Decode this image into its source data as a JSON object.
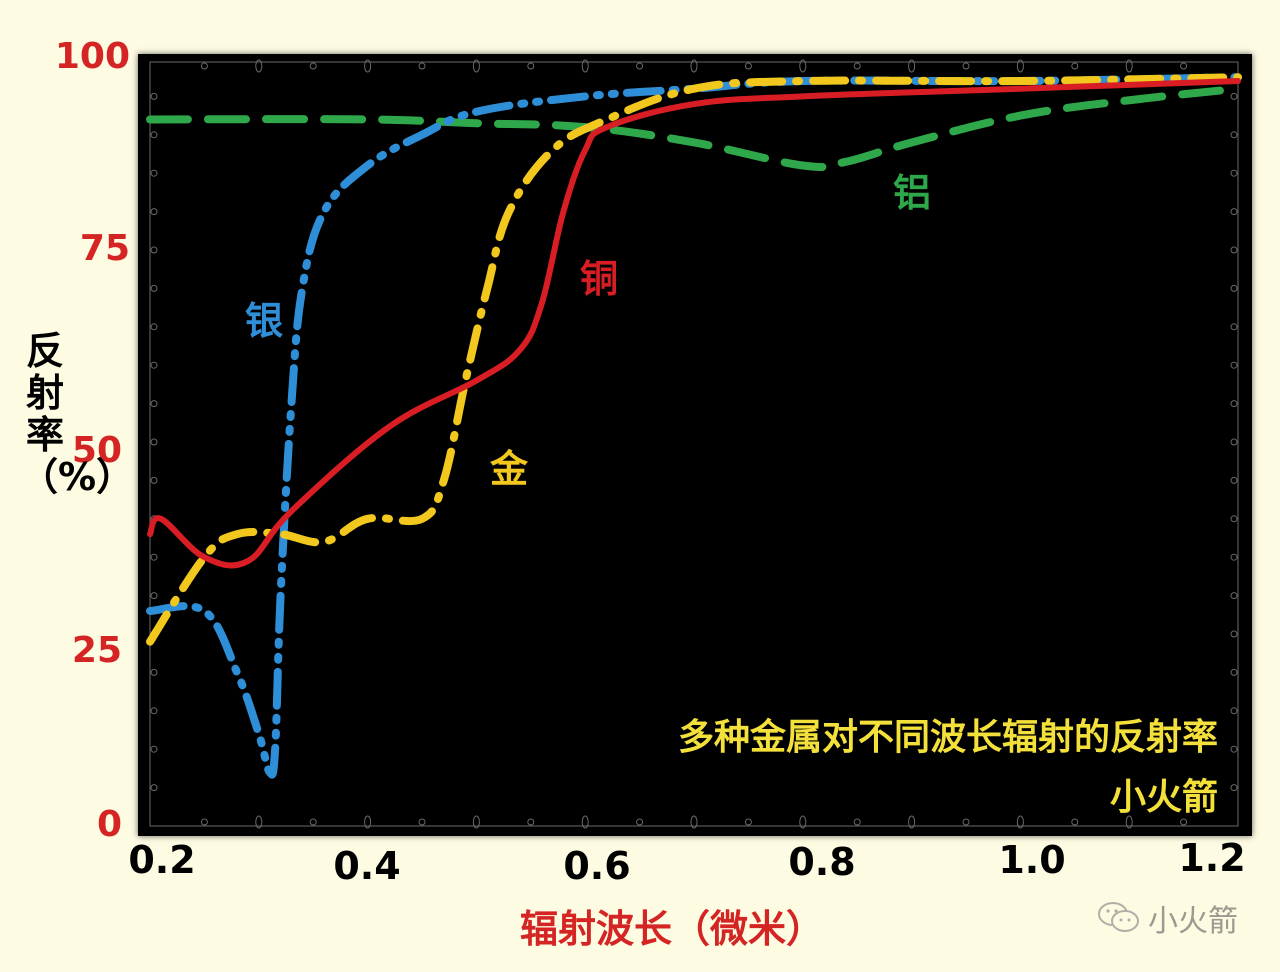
{
  "chart_data": {
    "type": "line",
    "title": "多种金属对不同波长辐射的反射率",
    "subtitle": "小火箭",
    "xlabel": "辐射波长（微米）",
    "ylabel": "反射率（%）",
    "xlim": [
      0.2,
      1.2
    ],
    "ylim": [
      0,
      100
    ],
    "x_ticks": [
      "0.2",
      "0.4",
      "0.6",
      "0.8",
      "1.0",
      "1.2"
    ],
    "y_ticks": [
      "0",
      "25",
      "50",
      "75",
      "100"
    ],
    "grid": false,
    "legend": "inline labels",
    "series": [
      {
        "name": "银",
        "english": "Silver",
        "color": "#2e8fd8",
        "style": "dash-dot-dot",
        "x": [
          0.2,
          0.25,
          0.28,
          0.3,
          0.31,
          0.315,
          0.32,
          0.33,
          0.34,
          0.36,
          0.4,
          0.45,
          0.5,
          0.6,
          0.7,
          0.8,
          1.0,
          1.2
        ],
        "values": [
          28,
          28,
          20,
          12,
          7,
          10,
          30,
          55,
          70,
          80,
          86,
          90,
          93,
          95,
          96,
          97,
          97,
          97.5
        ]
      },
      {
        "name": "金",
        "english": "Gold",
        "color": "#f2c81e",
        "style": "dash-dot",
        "x": [
          0.2,
          0.25,
          0.28,
          0.32,
          0.36,
          0.4,
          0.45,
          0.47,
          0.49,
          0.51,
          0.53,
          0.57,
          0.62,
          0.7,
          0.8,
          1.0,
          1.2
        ],
        "values": [
          24,
          35,
          38,
          38,
          37,
          40,
          40,
          45,
          58,
          70,
          80,
          88,
          92,
          96,
          97,
          97,
          97.5
        ]
      },
      {
        "name": "铜",
        "english": "Copper",
        "color": "#d81e24",
        "style": "solid",
        "x": [
          0.2,
          0.21,
          0.25,
          0.29,
          0.33,
          0.42,
          0.5,
          0.54,
          0.56,
          0.58,
          0.6,
          0.62,
          0.7,
          0.8,
          1.0,
          1.2
        ],
        "values": [
          38,
          40,
          35,
          34.5,
          41,
          52,
          58,
          62,
          68,
          80,
          88,
          91,
          94,
          95,
          96,
          97
        ]
      },
      {
        "name": "铝",
        "english": "Aluminum",
        "color": "#2ea84a",
        "style": "dashed",
        "x": [
          0.2,
          0.4,
          0.5,
          0.6,
          0.7,
          0.8,
          0.84,
          0.9,
          1.0,
          1.1,
          1.2
        ],
        "values": [
          92,
          92,
          91.5,
          91,
          89,
          86,
          86.5,
          89,
          92.5,
          94.5,
          96
        ]
      }
    ]
  },
  "labels": {
    "silver": "银",
    "gold": "金",
    "copper": "铜",
    "aluminum": "铝"
  },
  "watermark": "小火箭"
}
